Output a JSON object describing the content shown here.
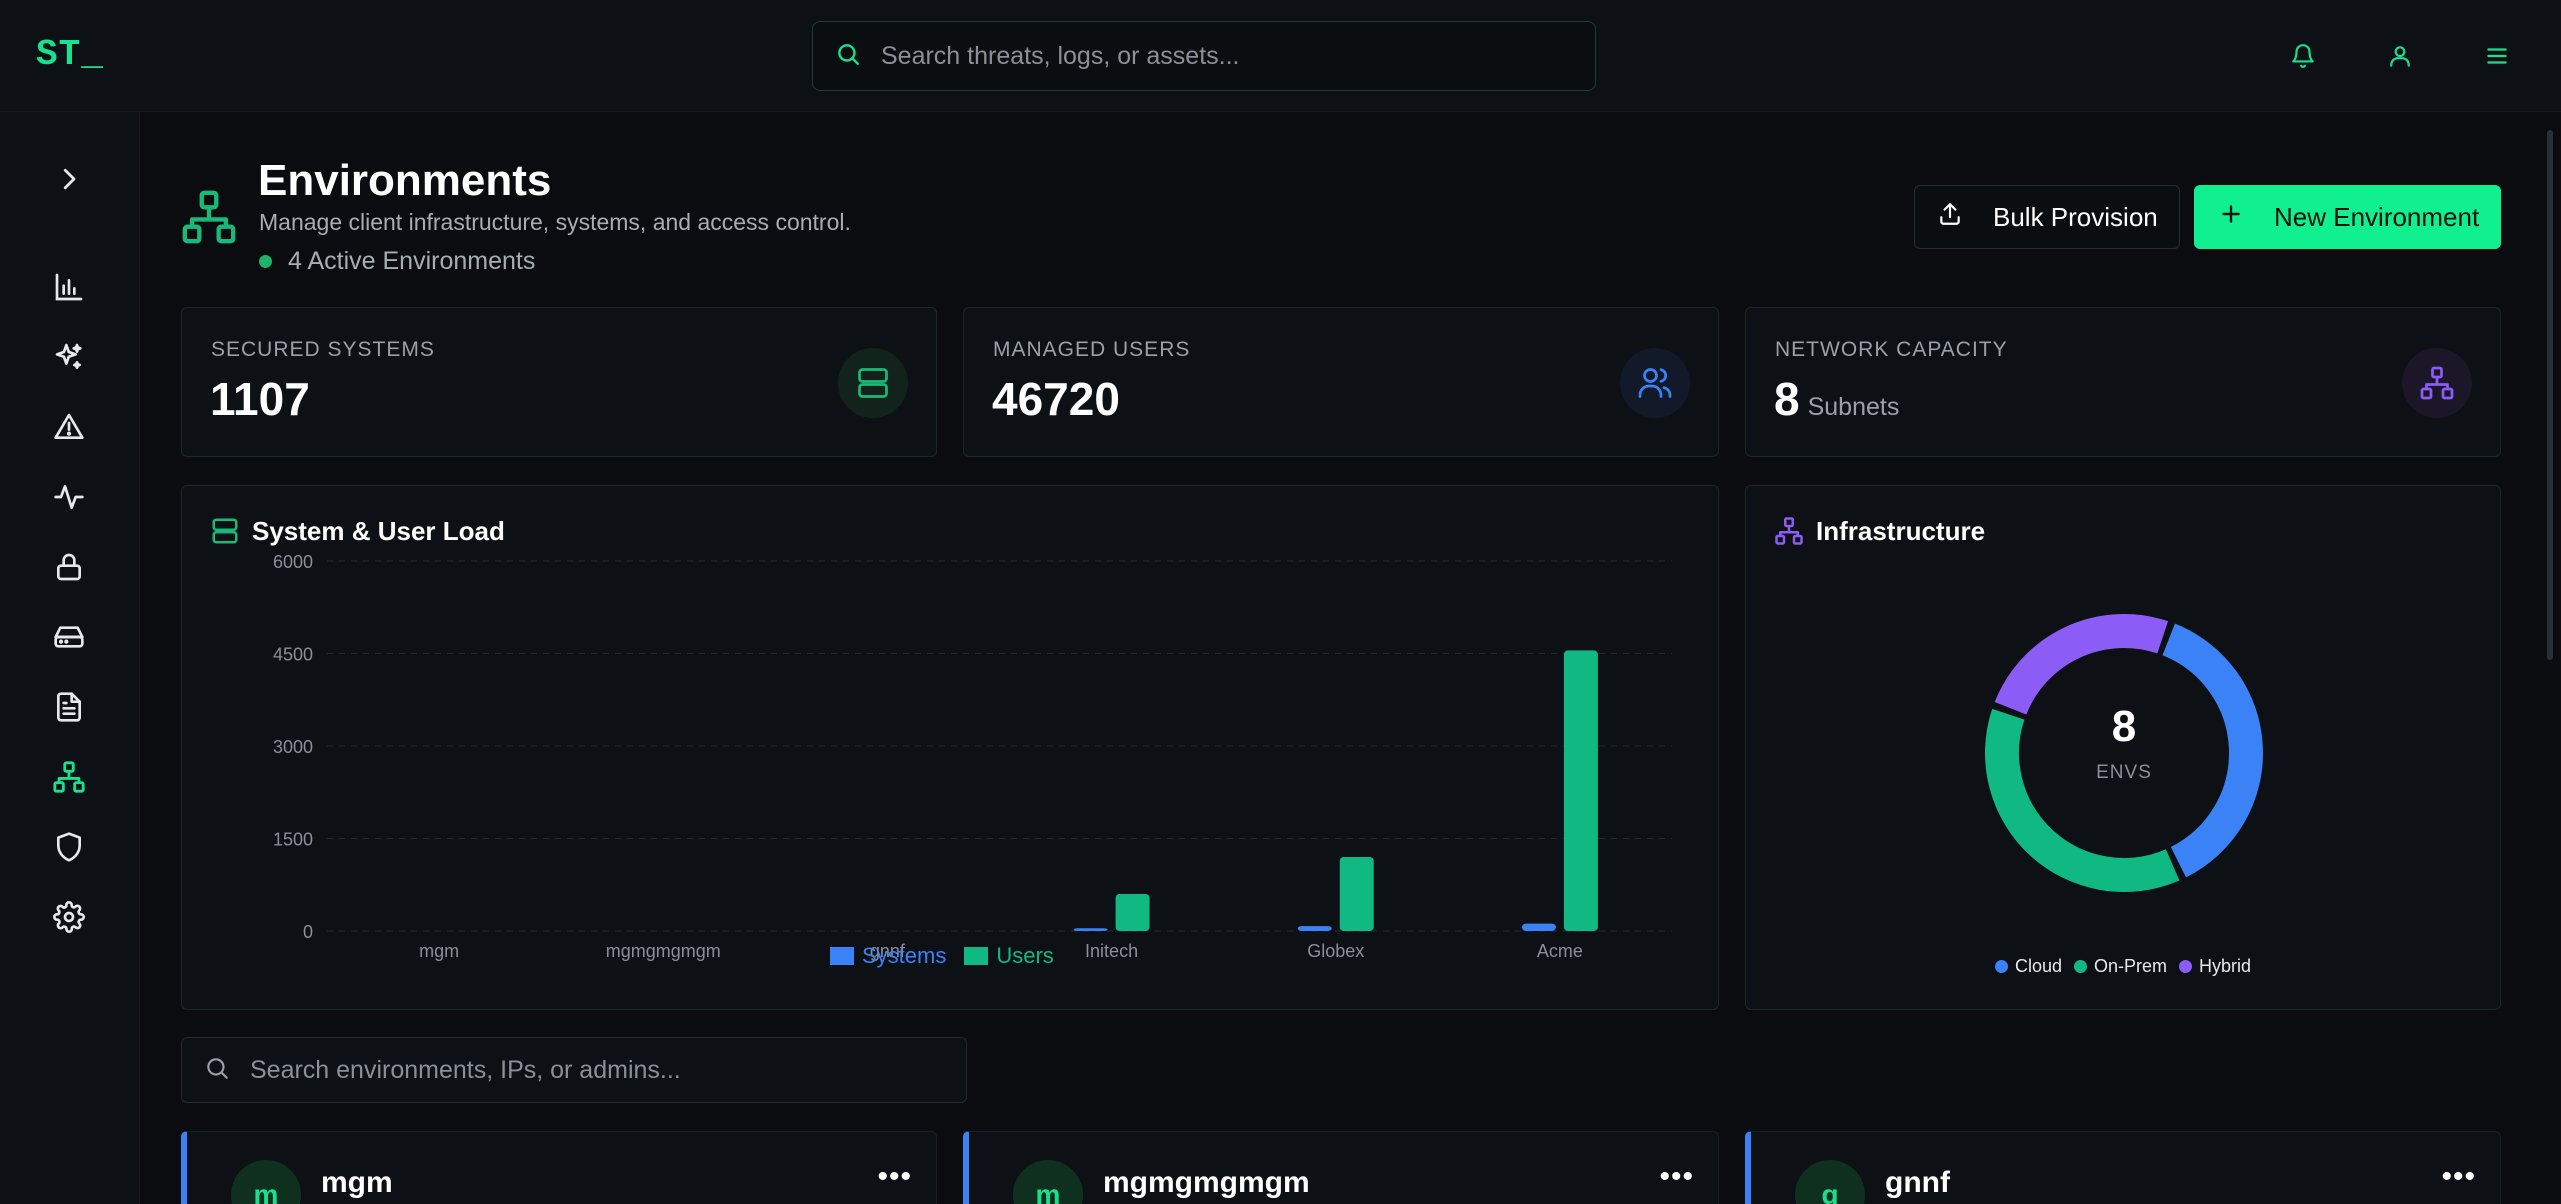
{
  "app": {
    "logo": "ST",
    "logo_cursor": "_"
  },
  "topbar": {
    "search_placeholder": "Search threats, logs, or assets...",
    "icons": [
      "bell-icon",
      "user-icon",
      "menu-icon"
    ]
  },
  "sidebar": {
    "items": [
      {
        "icon": "chevron-right-icon"
      },
      {
        "icon": "bar-chart-icon"
      },
      {
        "icon": "sparkles-icon"
      },
      {
        "icon": "alert-triangle-icon"
      },
      {
        "icon": "activity-icon"
      },
      {
        "icon": "lock-icon"
      },
      {
        "icon": "hard-drive-icon"
      },
      {
        "icon": "file-text-icon"
      },
      {
        "icon": "network-icon",
        "active": true
      },
      {
        "icon": "shield-icon"
      },
      {
        "icon": "settings-icon"
      }
    ]
  },
  "header": {
    "title": "Environments",
    "subtitle": "Manage client infrastructure, systems, and access control.",
    "status": "4 Active Environments",
    "bulk_button": "Bulk Provision",
    "new_button": "New Environment"
  },
  "stats": [
    {
      "label": "SECURED SYSTEMS",
      "value": "1107",
      "unit": ""
    },
    {
      "label": "MANAGED USERS",
      "value": "46720",
      "unit": ""
    },
    {
      "label": "NETWORK CAPACITY",
      "value": "8",
      "unit": "Subnets"
    }
  ],
  "colors": {
    "accent": "#10f08f",
    "systems": "#3b82f6",
    "users": "#10b981",
    "hybrid": "#8b5cf6"
  },
  "load_panel": {
    "title": "System & User Load"
  },
  "infra_panel": {
    "title": "Infrastructure",
    "center_value": "8",
    "center_label": "ENVS"
  },
  "chart_data": [
    {
      "type": "bar",
      "title": "System & User Load",
      "categories": [
        "mgm",
        "mgmgmgmgm",
        "gnnf",
        "Initech",
        "Globex",
        "Acme"
      ],
      "series": [
        {
          "name": "Systems",
          "values": [
            0,
            0,
            0,
            45,
            80,
            120
          ]
        },
        {
          "name": "Users",
          "values": [
            0,
            0,
            0,
            600,
            1200,
            4550
          ]
        }
      ],
      "ylim": [
        0,
        6000
      ],
      "yticks": [
        0,
        1500,
        3000,
        4500,
        6000
      ],
      "grid": true,
      "legend": "bottom"
    },
    {
      "type": "pie",
      "title": "Infrastructure",
      "categories": [
        "Cloud",
        "On-Prem",
        "Hybrid"
      ],
      "values": [
        3,
        3,
        2
      ],
      "legend": "bottom"
    }
  ],
  "filter": {
    "placeholder": "Search environments, IPs, or admins..."
  },
  "environments": [
    {
      "initial": "m",
      "name": "mgm"
    },
    {
      "initial": "m",
      "name": "mgmgmgmgm"
    },
    {
      "initial": "g",
      "name": "gnnf"
    }
  ]
}
